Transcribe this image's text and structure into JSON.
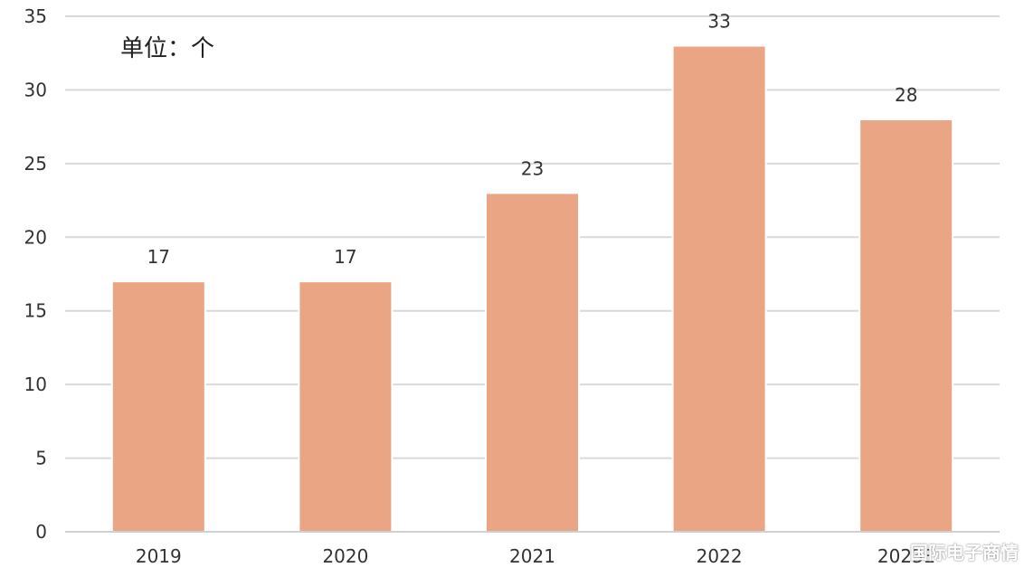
{
  "chart_data": {
    "type": "bar",
    "categories": [
      "2019",
      "2020",
      "2021",
      "2022",
      "2023E"
    ],
    "values": [
      17,
      17,
      23,
      33,
      28
    ],
    "ylim": [
      0,
      35
    ],
    "yticks": [
      0,
      5,
      10,
      15,
      20,
      25,
      30,
      35
    ],
    "unit_note": "单位：个",
    "bar_color": "#eaa584",
    "grid": true,
    "grid_color": "#d9d9d9"
  },
  "watermark": "国际电子商情"
}
